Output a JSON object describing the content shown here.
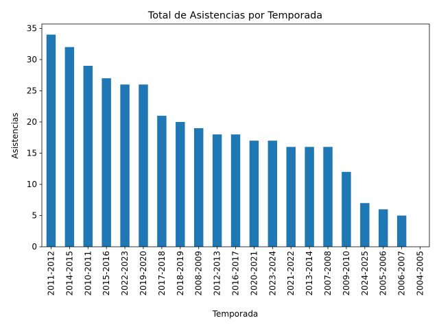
{
  "chart_data": {
    "type": "bar",
    "title": "Total de Asistencias por Temporada",
    "xlabel": "Temporada",
    "ylabel": "Asistencias",
    "categories": [
      "2011-2012",
      "2014-2015",
      "2010-2011",
      "2015-2016",
      "2022-2023",
      "2019-2020",
      "2017-2018",
      "2018-2019",
      "2008-2009",
      "2012-2013",
      "2016-2017",
      "2020-2021",
      "2023-2024",
      "2021-2022",
      "2013-2014",
      "2007-2008",
      "2009-2010",
      "2024-2025",
      "2005-2006",
      "2006-2007",
      "2004-2005"
    ],
    "values": [
      34,
      32,
      29,
      27,
      26,
      26,
      21,
      20,
      19,
      18,
      18,
      17,
      17,
      16,
      16,
      16,
      12,
      7,
      6,
      5,
      0
    ],
    "ylim": [
      0,
      35.7
    ],
    "yticks": [
      0,
      5,
      10,
      15,
      20,
      25,
      30,
      35
    ],
    "grid": false,
    "legend": "none",
    "bar_color": "#1f77b4"
  }
}
